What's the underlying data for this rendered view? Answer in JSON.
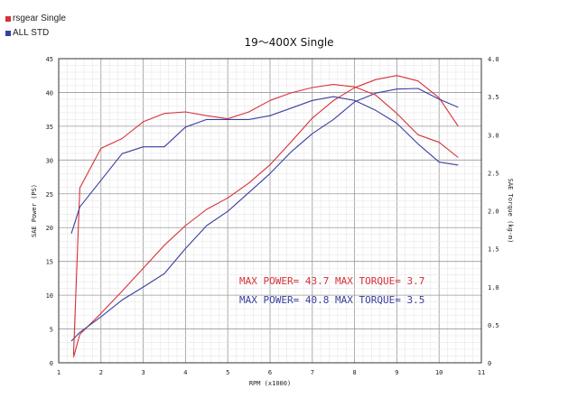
{
  "legend": [
    {
      "label": "rsgear Single",
      "color": "#d8303a"
    },
    {
      "label": "ALL STD",
      "color": "#3a3fa0"
    }
  ],
  "chart_data": {
    "type": "line",
    "title": "19～400X Single",
    "xlabel": "RPM (x1000)",
    "ylabel_left": "SAE Power (PS)",
    "ylabel_right": "SAE Torque (kg-m)",
    "xlim": [
      1,
      11
    ],
    "ylim_left": [
      0,
      45
    ],
    "ylim_right": [
      0,
      4.0
    ],
    "x_ticks": [
      "1",
      "2",
      "3",
      "4",
      "5",
      "6",
      "7",
      "8",
      "9",
      "10",
      "11"
    ],
    "y_left_ticks": [
      "0",
      "5",
      "10",
      "15",
      "20",
      "25",
      "30",
      "35",
      "40",
      "45"
    ],
    "y_right_ticks": [
      "0",
      "0.5",
      "1.0",
      "1.5",
      "2.0",
      "2.5",
      "3.0",
      "3.5",
      "4.0"
    ],
    "grid": true,
    "series": [
      {
        "name": "rsgear Single",
        "kind": "power",
        "axis": "left",
        "color": "#d8303a",
        "x": [
          1.35,
          1.5,
          2,
          2.5,
          3,
          3.5,
          4,
          4.5,
          5,
          5.5,
          6,
          6.5,
          7,
          7.5,
          8,
          8.5,
          9,
          9.5,
          10,
          10.45
        ],
        "y": [
          0.8,
          4.2,
          7.3,
          10.6,
          14.0,
          17.4,
          20.3,
          22.7,
          24.4,
          26.6,
          29.3,
          32.7,
          36.2,
          38.8,
          40.7,
          41.9,
          42.5,
          41.7,
          39.2,
          35.0
        ]
      },
      {
        "name": "ALL STD",
        "kind": "power",
        "axis": "left",
        "color": "#3a3fa0",
        "x": [
          1.3,
          1.5,
          2,
          2.5,
          3,
          3.5,
          4,
          4.5,
          5,
          5.5,
          6,
          6.5,
          7,
          7.5,
          8,
          8.5,
          9,
          9.5,
          10,
          10.45
        ],
        "y": [
          3.2,
          4.5,
          6.8,
          9.3,
          11.2,
          13.2,
          16.9,
          20.3,
          22.4,
          25.2,
          28.0,
          31.2,
          33.9,
          36.0,
          38.6,
          39.9,
          40.5,
          40.6,
          39.0,
          37.8
        ]
      },
      {
        "name": "rsgear Single",
        "kind": "torque",
        "axis": "right",
        "color": "#d8303a",
        "x": [
          1.35,
          1.5,
          2,
          2.5,
          3,
          3.5,
          4,
          4.5,
          5,
          5.5,
          6,
          6.5,
          7,
          7.5,
          8,
          8.5,
          9,
          9.5,
          10,
          10.45
        ],
        "y": [
          0.1,
          2.3,
          2.82,
          2.95,
          3.17,
          3.28,
          3.3,
          3.25,
          3.21,
          3.3,
          3.45,
          3.55,
          3.62,
          3.66,
          3.63,
          3.52,
          3.28,
          3.0,
          2.9,
          2.7
        ]
      },
      {
        "name": "ALL STD",
        "kind": "torque",
        "axis": "right",
        "color": "#3a3fa0",
        "x": [
          1.3,
          1.5,
          2,
          2.5,
          3,
          3.5,
          4,
          4.5,
          5,
          5.5,
          6,
          6.5,
          7,
          7.5,
          8,
          8.5,
          9,
          9.5,
          10,
          10.45
        ],
        "y": [
          1.7,
          2.05,
          2.4,
          2.75,
          2.84,
          2.84,
          3.1,
          3.2,
          3.2,
          3.2,
          3.25,
          3.35,
          3.45,
          3.5,
          3.45,
          3.32,
          3.15,
          2.88,
          2.64,
          2.6
        ]
      }
    ],
    "annotations": [
      {
        "text": "MAX POWER= 43.7",
        "color": "#d8303a"
      },
      {
        "text": "MAX TORQUE= 3.7",
        "color": "#d8303a"
      },
      {
        "text": "MAX POWER= 40.8",
        "color": "#3a3fa0"
      },
      {
        "text": "MAX TORQUE= 3.5",
        "color": "#3a3fa0"
      }
    ]
  }
}
